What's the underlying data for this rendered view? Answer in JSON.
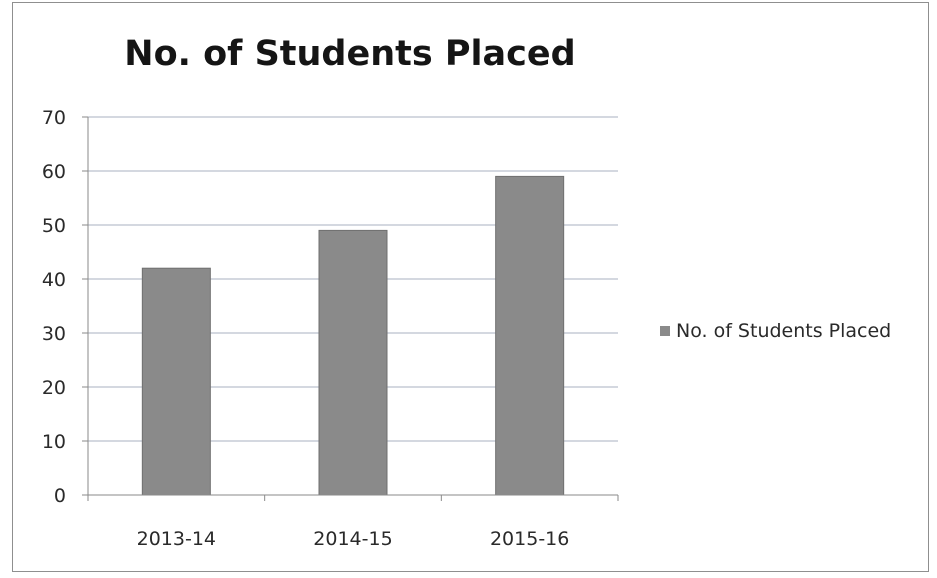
{
  "chart_data": {
    "type": "bar",
    "title": "No. of Students Placed",
    "categories": [
      "2013-14",
      "2014-15",
      "2015-16"
    ],
    "series": [
      {
        "name": "No. of Students Placed",
        "values": [
          42,
          49,
          59
        ]
      }
    ],
    "ylim": [
      0,
      70
    ],
    "yticks": [
      0,
      10,
      20,
      30,
      40,
      50,
      60,
      70
    ],
    "grid": true,
    "legend": "right",
    "colors": {
      "bar": "#8a8a8a",
      "bar_edge": "#6f6f6f",
      "grid": "#c6cbd6",
      "axis": "#8a8a8a"
    }
  }
}
